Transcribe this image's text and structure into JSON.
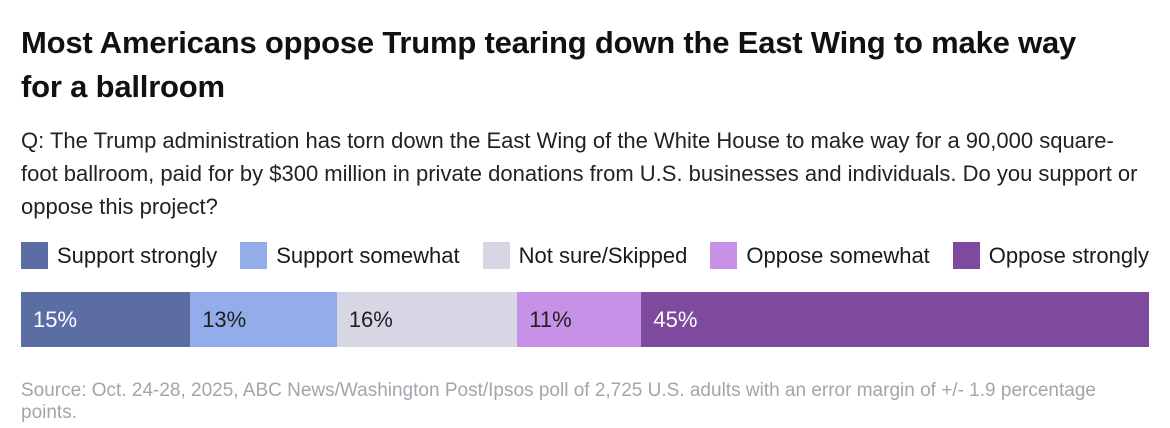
{
  "title": "Most Americans oppose Trump tearing down the East Wing to make way for a ballroom",
  "question": "Q: The Trump administration has torn down the East Wing of the White House to make way for a 90,000 square-foot ballroom, paid for by $300 million in private donations from U.S. businesses and individuals. Do you support or oppose this project?",
  "source": "Source: Oct. 24-28, 2025, ABC News/Washington Post/Ipsos poll of 2,725 U.S. adults with an error margin of +/- 1.9 percentage points.",
  "chart_data": {
    "type": "bar",
    "subtype": "horizontal-stacked-100-percent",
    "title": "Most Americans oppose Trump tearing down the East Wing to make way for a ballroom",
    "legend_position": "top",
    "grid": false,
    "total": 100,
    "series": [
      {
        "name": "Support strongly",
        "value": 15,
        "label": "15%",
        "color": "#5c6da3",
        "text_color": "#ffffff"
      },
      {
        "name": "Support somewhat",
        "value": 13,
        "label": "13%",
        "color": "#93adea",
        "text_color": "#1f1f1f"
      },
      {
        "name": "Not sure/Skipped",
        "value": 16,
        "label": "16%",
        "color": "#d7d6e5",
        "text_color": "#1f1f1f"
      },
      {
        "name": "Oppose somewhat",
        "value": 11,
        "label": "11%",
        "color": "#c891e8",
        "text_color": "#1f1f1f"
      },
      {
        "name": "Oppose strongly",
        "value": 45,
        "label": "45%",
        "color": "#7d4a9e",
        "text_color": "#ffffff"
      }
    ]
  }
}
